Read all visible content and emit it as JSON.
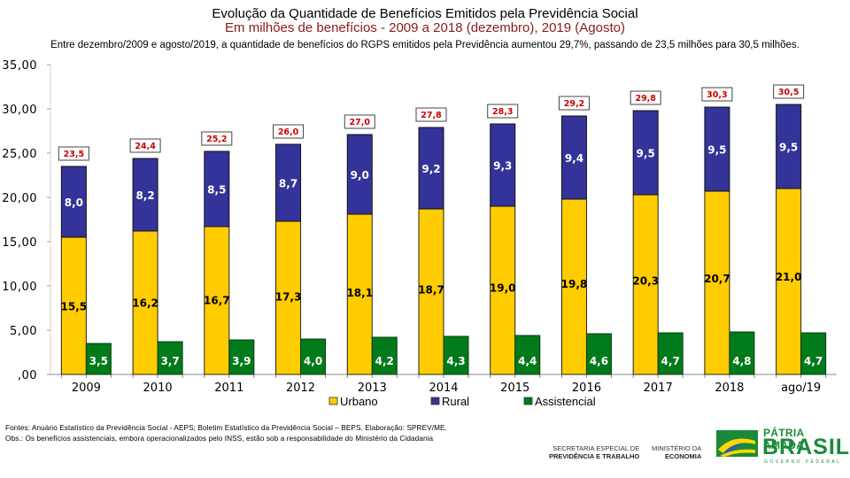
{
  "header": {
    "title": "Evolução da Quantidade de Benefícios Emitidos pela Previdência Social",
    "subtitle": "Em milhões de benefícios - 2009 a 2018 (dezembro), 2019 (Agosto)",
    "summary": "Entre dezembro/2009 e agosto/2019, a quantidade de benefícios do RGPS emitidos pela Previdência aumentou 29,7%, passando de 23,5 milhões para 30,5 milhões."
  },
  "chart_data": {
    "type": "bar",
    "title": "Evolução da Quantidade de Benefícios Emitidos pela Previdência Social",
    "xlabel": "",
    "ylabel": "",
    "ylim": [
      0,
      35
    ],
    "yticks": [
      ",00",
      "5,00",
      "10,00",
      "15,00",
      "20,00",
      "25,00",
      "30,00",
      "35,00"
    ],
    "ytick_values": [
      0,
      5,
      10,
      15,
      20,
      25,
      30,
      35
    ],
    "grid": false,
    "legend": "bottom-center",
    "categories": [
      "2009",
      "2010",
      "2011",
      "2012",
      "2013",
      "2014",
      "2015",
      "2016",
      "2017",
      "2018",
      "ago/19"
    ],
    "series": [
      {
        "name": "Urbano",
        "color": "#ffcc00",
        "stack": "rgps",
        "values": [
          15.5,
          16.2,
          16.7,
          17.3,
          18.1,
          18.7,
          19.0,
          19.8,
          20.3,
          20.7,
          21.0
        ],
        "labels": [
          "15,5",
          "16,2",
          "16,7",
          "17,3",
          "18,1",
          "18,7",
          "19,0",
          "19,8",
          "20,3",
          "20,7",
          "21,0"
        ]
      },
      {
        "name": "Rural",
        "color": "#333399",
        "stack": "rgps",
        "values": [
          8.0,
          8.2,
          8.5,
          8.7,
          9.0,
          9.2,
          9.3,
          9.4,
          9.5,
          9.5,
          9.5
        ],
        "labels": [
          "8,0",
          "8,2",
          "8,5",
          "8,7",
          "9,0",
          "9,2",
          "9,3",
          "9,4",
          "9,5",
          "9,5",
          "9,5"
        ]
      },
      {
        "name": "Assistencial",
        "color": "#007a1a",
        "stack": "assist",
        "values": [
          3.5,
          3.7,
          3.9,
          4.0,
          4.2,
          4.3,
          4.4,
          4.6,
          4.7,
          4.8,
          4.7
        ],
        "labels": [
          "3,5",
          "3,7",
          "3,9",
          "4,0",
          "4,2",
          "4,3",
          "4,4",
          "4,6",
          "4,7",
          "4,8",
          "4,7"
        ]
      }
    ],
    "totals": [
      23.5,
      24.4,
      25.2,
      26.0,
      27.0,
      27.8,
      28.3,
      29.2,
      29.8,
      30.3,
      30.5
    ],
    "total_labels": [
      "23,5",
      "24,4",
      "25,2",
      "26,0",
      "27,0",
      "27,8",
      "28,3",
      "29,2",
      "29,8",
      "30,3",
      "30,5"
    ],
    "total_label_color": "#cc0000"
  },
  "footer": {
    "sources": "Fontes: Anuário Estatístico da Previdência Social - AEPS; Boletim Estatístico da Previdência Social – BEPS. Elaboração: SPREV/ME.",
    "note": "Obs.: Os benefícios assistenciais, embora operacionalizados pelo INSS, estão sob a responsabilidade do Ministério da Cidadania"
  },
  "logos": {
    "secretaria_line1": "SECRETARIA ESPECIAL DE",
    "secretaria_line2": "PREVIDÊNCIA E TRABALHO",
    "ministerio_line1": "MINISTÉRIO DA",
    "ministerio_line2": "ECONOMIA",
    "brand_line1": "PÁTRIA AMADA",
    "brand_line2": "BRASIL",
    "brand_line3": "GOVERNO FEDERAL"
  }
}
